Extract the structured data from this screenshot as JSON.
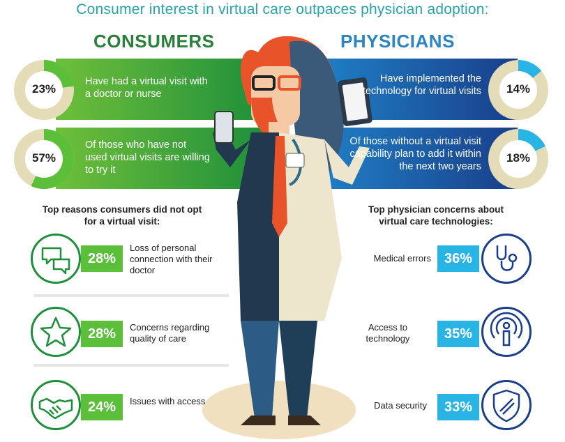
{
  "title": "Consumer interest in virtual care outpaces physician adoption:",
  "consumers": {
    "heading": "CONSUMERS",
    "stats": [
      {
        "value": 23,
        "label": "23%",
        "text": "Have had a virtual visit with a doctor or nurse"
      },
      {
        "value": 57,
        "label": "57%",
        "text": "Of those who have not used virtual visits are willing to try it"
      }
    ],
    "reasons_heading": "Top reasons consumers did not opt for a virtual visit:",
    "reasons": [
      {
        "pct": "28%",
        "text": "Loss of personal connection with their doctor",
        "icon": "chat-bubbles-icon"
      },
      {
        "pct": "28%",
        "text": "Concerns regarding quality of care",
        "icon": "star-icon"
      },
      {
        "pct": "24%",
        "text": "Issues with access",
        "icon": "handshake-icon"
      }
    ]
  },
  "physicians": {
    "heading": "PHYSICIANS",
    "stats": [
      {
        "value": 14,
        "label": "14%",
        "text": "Have implemented the technology for virtual visits"
      },
      {
        "value": 18,
        "label": "18%",
        "text": "Of those without a virtual visit capability plan to add it within the next two years"
      }
    ],
    "concerns_heading": "Top physician concerns about virtual care technologies:",
    "concerns": [
      {
        "pct": "36%",
        "text": "Medical errors",
        "icon": "stethoscope-icon"
      },
      {
        "pct": "35%",
        "text": "Access to technology",
        "icon": "wireless-person-icon"
      },
      {
        "pct": "33%",
        "text": "Data security",
        "icon": "shield-icon"
      }
    ]
  },
  "colors": {
    "consumer_accent": "#5bbf3a",
    "consumer_dark": "#1e8f3a",
    "physician_accent": "#29b4e6",
    "physician_dark": "#1a3e8a",
    "donut_track": "#e3dcb6"
  }
}
